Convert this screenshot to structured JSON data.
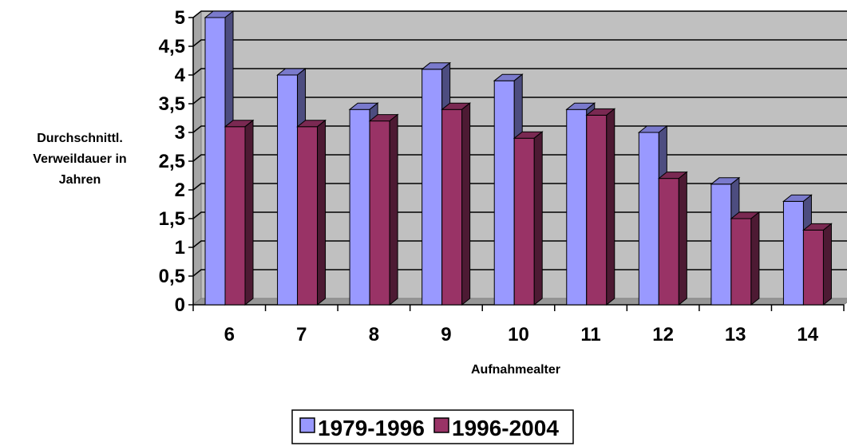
{
  "chart_data": {
    "type": "bar",
    "categories": [
      "6",
      "7",
      "8",
      "9",
      "10",
      "11",
      "12",
      "13",
      "14"
    ],
    "series": [
      {
        "name": "1979-1996",
        "values": [
          5.0,
          4.0,
          3.4,
          4.1,
          3.9,
          3.4,
          3.0,
          2.1,
          1.8
        ],
        "color": "#9999ff"
      },
      {
        "name": "1996-2004",
        "values": [
          3.1,
          3.1,
          3.2,
          3.4,
          2.9,
          3.3,
          2.2,
          1.5,
          1.3
        ],
        "color": "#993366"
      }
    ],
    "yticks": [
      "0",
      "0,5",
      "1",
      "1,5",
      "2",
      "2,5",
      "3",
      "3,5",
      "4",
      "4,5",
      "5"
    ],
    "ylim": [
      0,
      5
    ],
    "xlabel": "Aufnahmealter",
    "ylabel_lines": [
      "Durchschnittl.",
      "Verweildauer in",
      "Jahren"
    ],
    "grid": true,
    "legend_position": "bottom",
    "plot_background": "#c0c0c0",
    "three_d": true
  }
}
